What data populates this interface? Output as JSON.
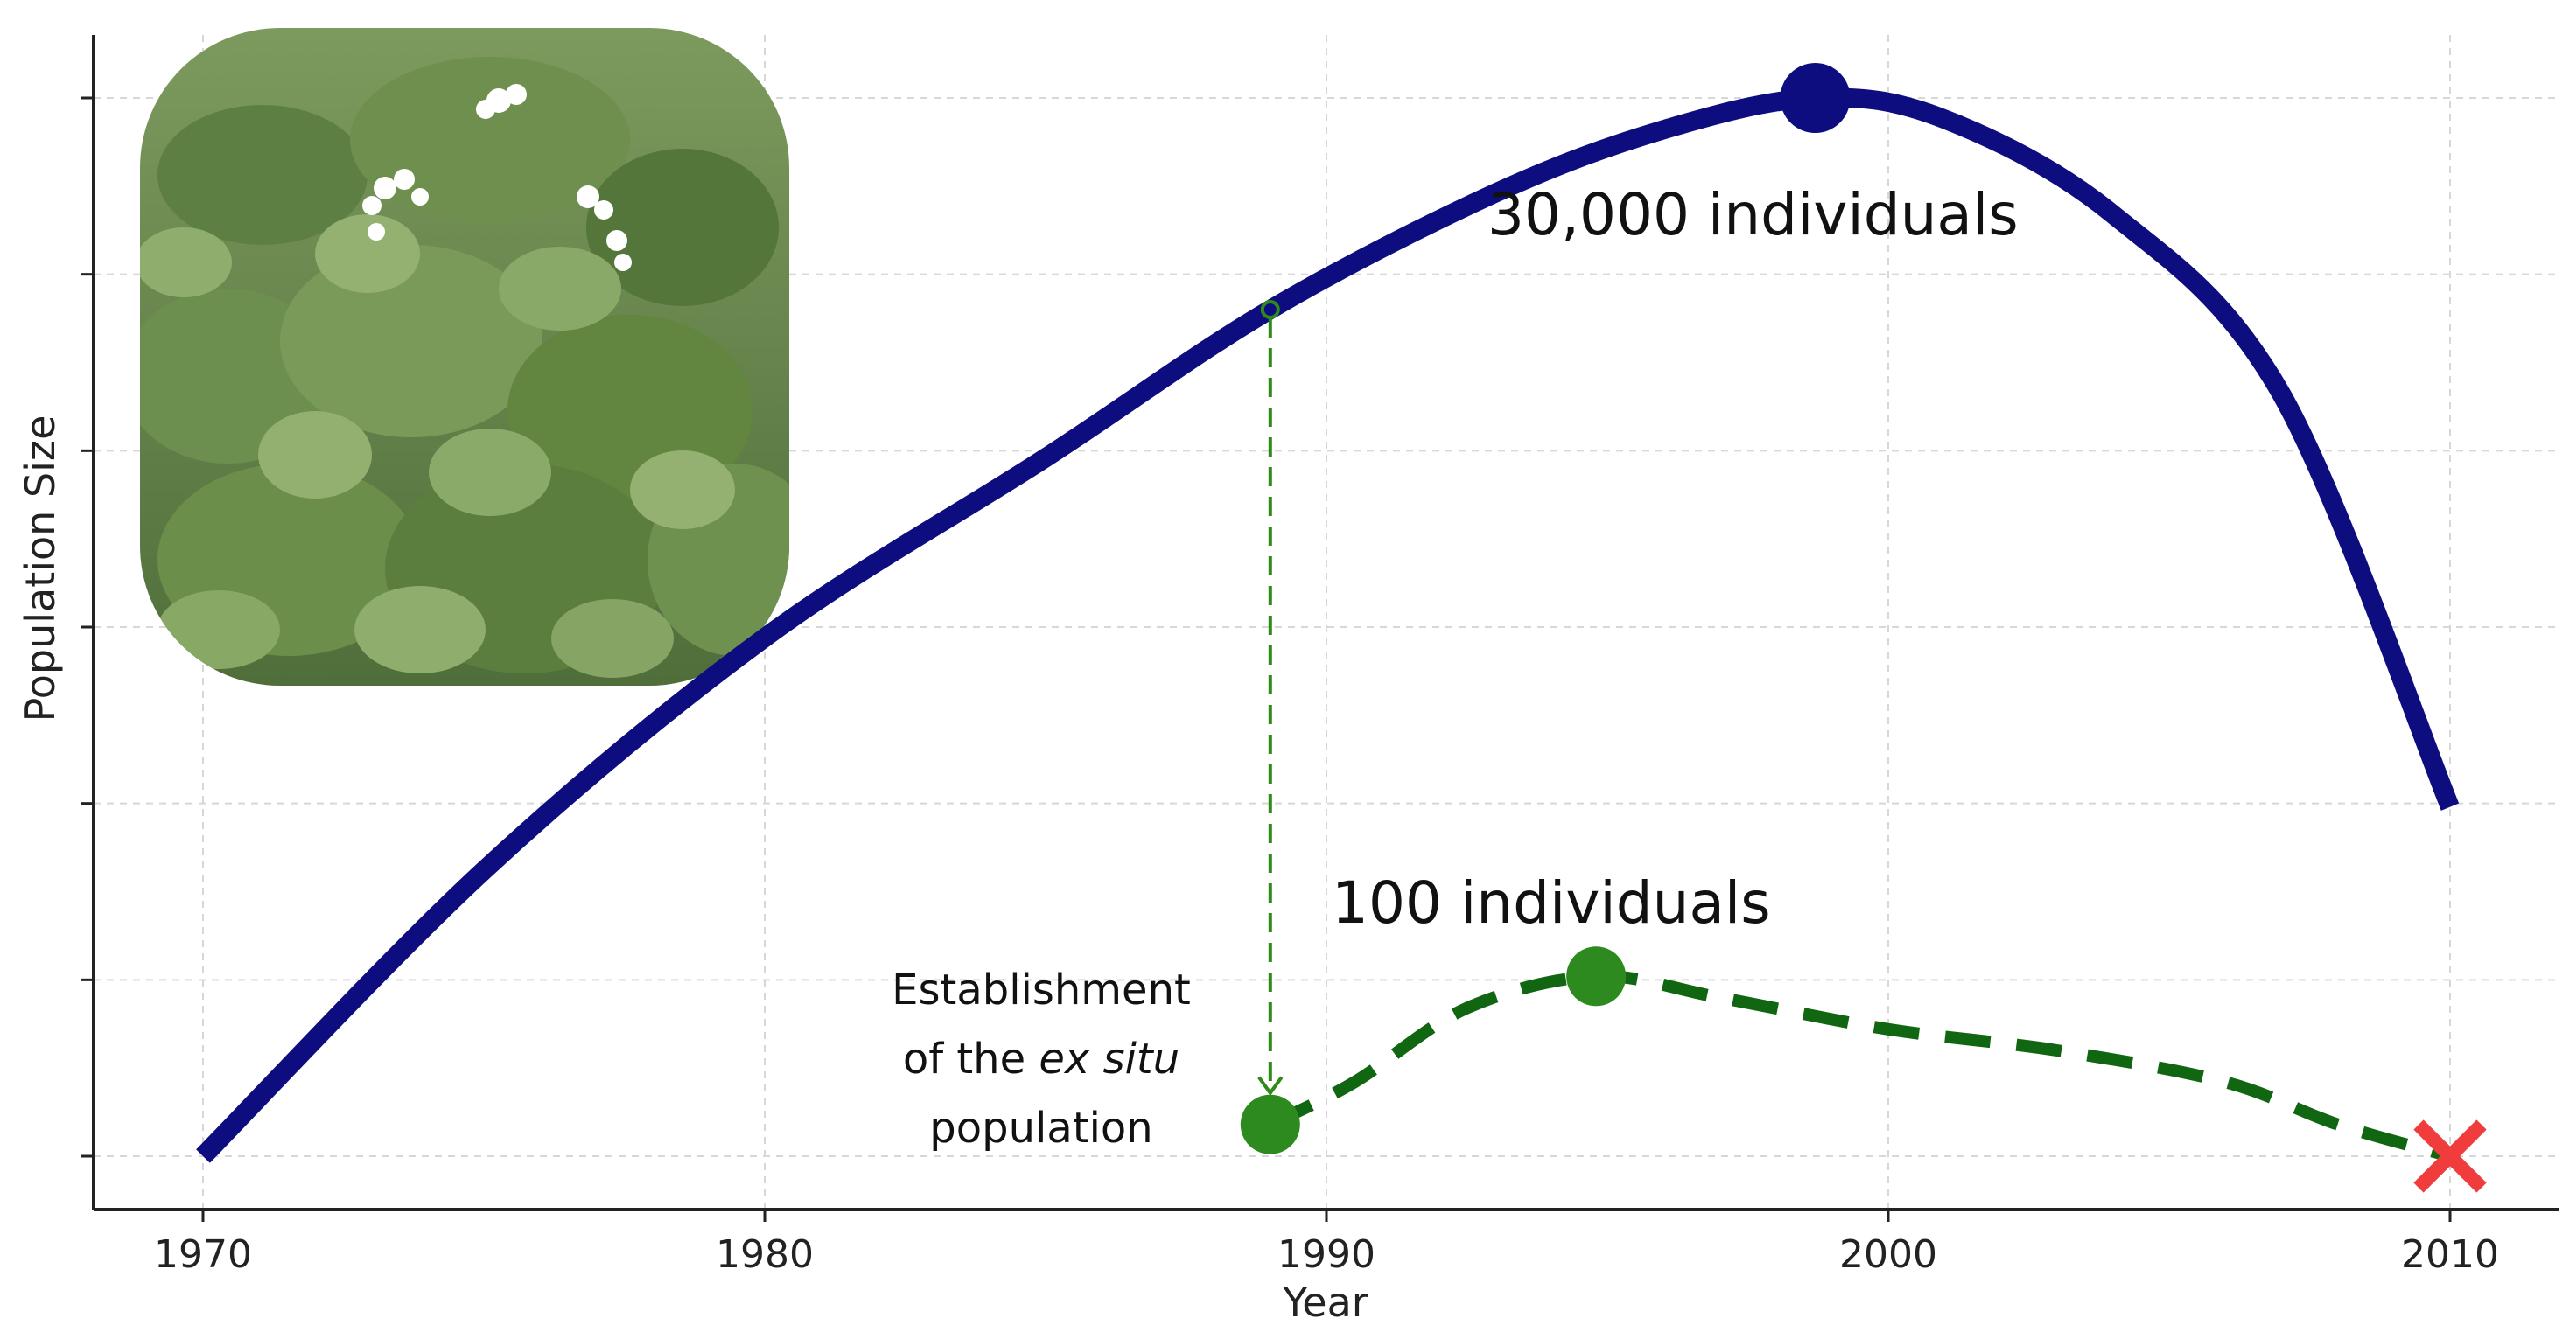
{
  "chart_data": {
    "type": "line",
    "title": "",
    "xlabel": "Year",
    "ylabel": "Population Size",
    "xlim": [
      1968,
      2012
    ],
    "x_ticks": [
      1970,
      1980,
      1990,
      2000,
      2010
    ],
    "y_tick_labels_shown": false,
    "grid": true,
    "legend": "none",
    "series": [
      {
        "color": "#0d0d80",
        "style": "solid",
        "x": [
          1970,
          1975,
          1980,
          1985,
          1989,
          1993,
          1996,
          1998.7,
          2001,
          2004,
          2007,
          2010
        ],
        "y_relative": [
          0.0,
          0.27,
          0.49,
          0.66,
          0.8,
          0.91,
          0.97,
          1.0,
          0.98,
          0.89,
          0.72,
          0.33
        ],
        "marker_at_x": 1998.7
      },
      {
        "color": "#116611",
        "style": "dashed",
        "x": [
          1989,
          1990.5,
          1992.5,
          1994.8,
          1997,
          2000,
          2003,
          2006,
          2008,
          2010
        ],
        "y_relative": [
          0.03,
          0.07,
          0.14,
          0.17,
          0.15,
          0.12,
          0.1,
          0.07,
          0.03,
          0.0
        ],
        "marker_at_x": [
          1989,
          1994.8
        ],
        "end_marker": "x"
      }
    ],
    "annotations": {
      "peak_label": "30,000 individuals",
      "ex_situ_peak_label": "100 individuals",
      "establishment_line1": "Establishment",
      "establishment_line2_prefix": "of the ",
      "establishment_line2_italic": "ex situ",
      "establishment_line3": "population"
    },
    "colors": {
      "wild_population": "#0d0d80",
      "ex_situ_population": "#116611",
      "establishment_arrow": "#2f8a1a",
      "extinction_marker": "#f03c3c",
      "grid": "#d7d7d7",
      "axis": "#222222"
    }
  },
  "image": {
    "subject": "plant photograph"
  }
}
